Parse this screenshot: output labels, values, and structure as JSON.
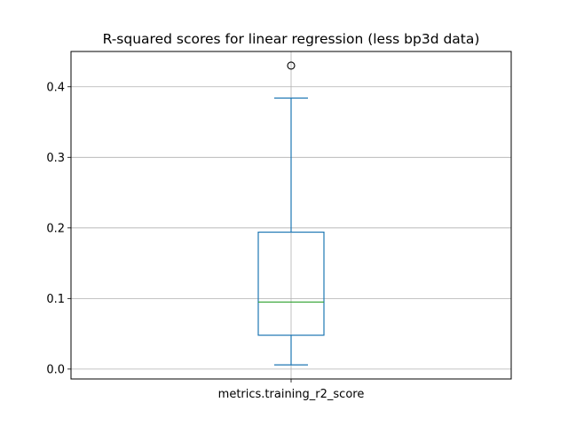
{
  "chart_data": {
    "type": "box",
    "title": "R-squared scores for linear regression (less bp3d data)",
    "xlabel": "",
    "ylabel": "",
    "categories": [
      "metrics.training_r2_score"
    ],
    "boxes": [
      {
        "name": "metrics.training_r2_score",
        "whisker_low": 0.006,
        "q1": 0.048,
        "median": 0.095,
        "q3": 0.194,
        "whisker_high": 0.384,
        "outliers": [
          0.43
        ]
      }
    ],
    "ylim": [
      -0.014,
      0.45
    ],
    "yticks": [
      0.0,
      0.1,
      0.2,
      0.3,
      0.4
    ],
    "ytick_labels": [
      "0.0",
      "0.1",
      "0.2",
      "0.3",
      "0.4"
    ],
    "grid": true,
    "colors": {
      "box": "#1f77b4",
      "median": "#2ca02c",
      "grid": "#b0b0b0",
      "axes": "#000000"
    }
  }
}
